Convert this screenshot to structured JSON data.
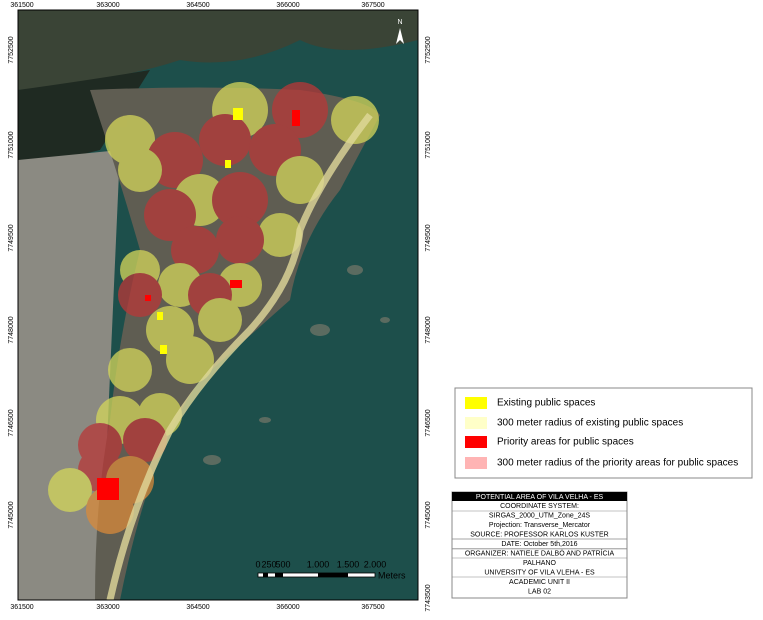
{
  "map": {
    "north": "N",
    "x_labels": [
      361500,
      363000,
      364500,
      366000,
      367500
    ],
    "y_labels_left": [
      7752500,
      7751000,
      7749500,
      7748000,
      7746500,
      7745000
    ],
    "y_labels_right": [
      7752500,
      7751000,
      7749500,
      7748000,
      7746500,
      7745000,
      7743500
    ],
    "scale_labels": [
      "0",
      "250",
      "500",
      "1.000",
      "1.500",
      "2.000"
    ],
    "scale_unit": "Meters"
  },
  "legend": [
    {
      "label": "Existing public spaces",
      "color": "#ffff00"
    },
    {
      "label": "300 meter radius of existing public spaces",
      "color": "#ffffc8"
    },
    {
      "label": "Priority areas for public spaces",
      "color": "#ff0000"
    },
    {
      "label": "300 meter radius of the priority areas for public spaces",
      "color": "#ffb4b4"
    }
  ],
  "info": {
    "title": "POTENTIAL AREA OF VILA VELHA - ES",
    "lines": [
      "COORDINATE SYSTEM:",
      "SIRGAS_2000_UTM_Zone_24S",
      "Projection: Transverse_Mercator",
      "SOURCE: PROFESSOR KARLOS KUSTER",
      "DATE: October 5th,2016",
      "ORGANIZER: NATIELE DALBÓ AND PATRÍCIA",
      "PALHANO",
      "UNIVERSITY OF VILA VLEHA - ES",
      "ACADEMIC UNIT II",
      "LAB 02"
    ]
  }
}
